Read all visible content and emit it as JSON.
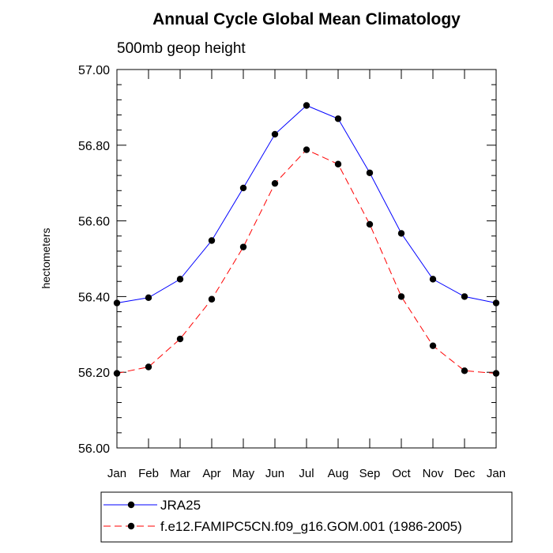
{
  "chart_data": {
    "type": "line",
    "title": "Annual Cycle Global Mean Climatology",
    "subtitle": "500mb geop height",
    "xlabel": "",
    "ylabel": "hectometers",
    "ylim": [
      56.0,
      57.0
    ],
    "yticks": [
      56.0,
      56.2,
      56.4,
      56.6,
      56.8,
      57.0
    ],
    "ytick_labels": [
      "56.00",
      "56.20",
      "56.40",
      "56.60",
      "56.80",
      "57.00"
    ],
    "categories": [
      "Jan",
      "Feb",
      "Mar",
      "Apr",
      "May",
      "Jun",
      "Jul",
      "Aug",
      "Sep",
      "Oct",
      "Nov",
      "Dec",
      "Jan"
    ],
    "grid": false,
    "legend_position": "bottom",
    "series": [
      {
        "name": "JRA25",
        "color": "#0000ff",
        "line_style": "solid",
        "values": [
          56.383,
          56.397,
          56.446,
          56.548,
          56.687,
          56.829,
          56.905,
          56.87,
          56.727,
          56.567,
          56.446,
          56.4,
          56.383
        ]
      },
      {
        "name": "f.e12.FAMIPC5CN.f09_g16.GOM.001 (1986-2005)",
        "color": "#ff0000",
        "line_style": "dashed",
        "values": [
          56.197,
          56.214,
          56.288,
          56.393,
          56.531,
          56.699,
          56.788,
          56.75,
          56.591,
          56.4,
          56.27,
          56.204,
          56.197
        ]
      }
    ]
  }
}
